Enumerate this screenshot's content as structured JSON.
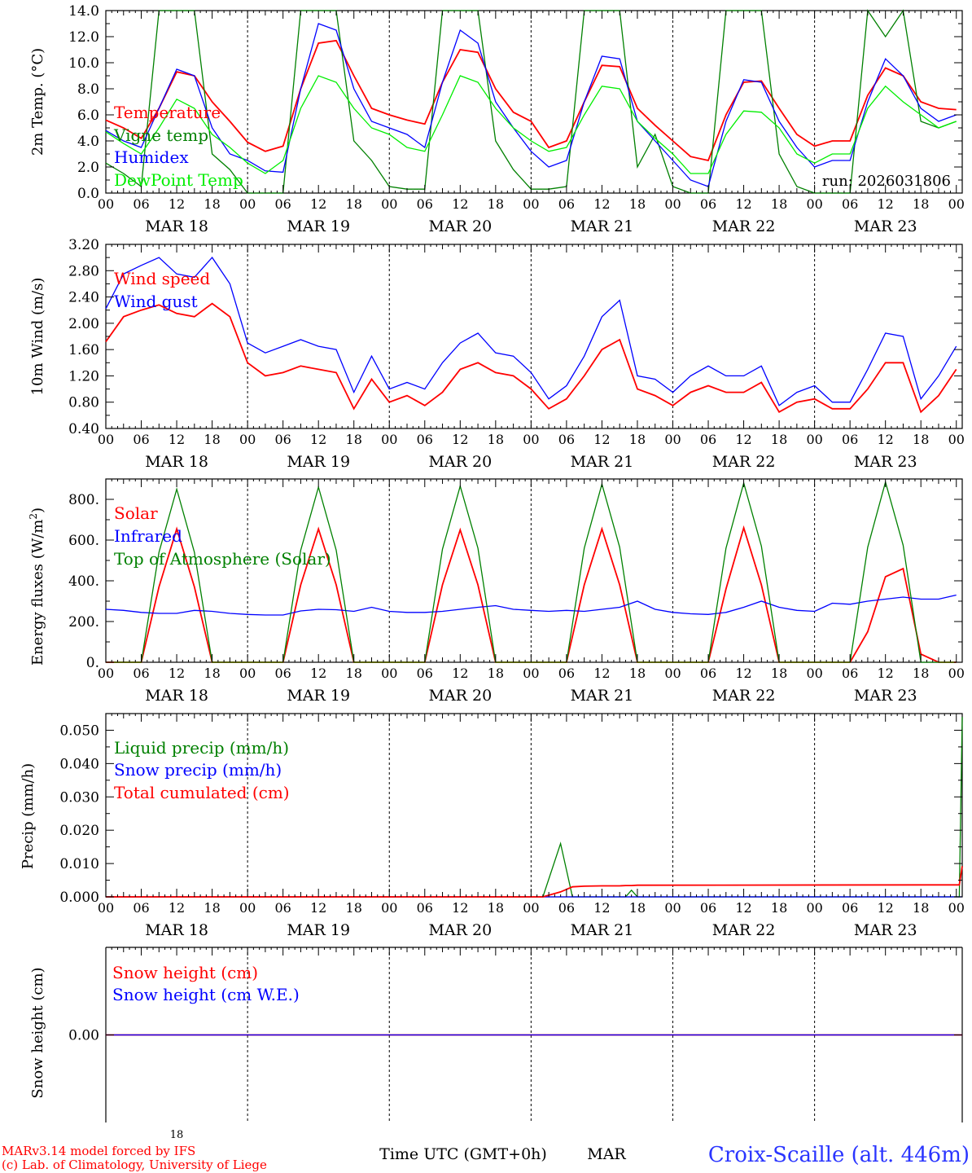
{
  "colors": {
    "red": "#ff0000",
    "green": "#008000",
    "blue": "#0000ff",
    "lightgreen": "#00ee00"
  },
  "x_axis": {
    "hour_ticks": [
      "00",
      "06",
      "12",
      "18"
    ],
    "days": [
      "MAR 18",
      "MAR 19",
      "MAR 20",
      "MAR 21",
      "MAR 22",
      "MAR 23"
    ],
    "final_tick": "00"
  },
  "footer": {
    "day_small": "18",
    "model": "MARv3.14 model forced by IFS",
    "lab": "(c) Lab. of Climatology, University of Liege",
    "time_label": "Time UTC (GMT+0h)",
    "month": "MAR",
    "station": "Croix-Scaille (alt. 446m)"
  },
  "panels": {
    "temp": {
      "ylabel": "2m Temp. (°C)",
      "run": "run: 2026031806",
      "legend": [
        "Temperature",
        "Vigne temp",
        "Humidex",
        "DewPoint Temp"
      ],
      "yticks": [
        "0.0",
        "2.0",
        "4.0",
        "6.0",
        "8.0",
        "10.0",
        "12.0",
        "14.0"
      ]
    },
    "wind": {
      "ylabel": "10m Wind (m/s)",
      "legend": [
        "Wind speed",
        "Wind gust"
      ],
      "yticks": [
        "0.40",
        "0.80",
        "1.20",
        "1.60",
        "2.00",
        "2.40",
        "2.80",
        "3.20"
      ]
    },
    "energy": {
      "ylabel_main": "Energy fluxes (W/m",
      "ylabel_sup": "2",
      "ylabel_end": ")",
      "legend": [
        "Solar",
        "Infrared",
        "Top of Atmosphere (Solar)"
      ],
      "yticks": [
        "0.",
        "200.",
        "400.",
        "600.",
        "800."
      ]
    },
    "precip": {
      "ylabel": "Precip (mm/h)",
      "legend": [
        "Liquid precip (mm/h)",
        "Snow precip (mm/h)",
        "Total cumulated (cm)"
      ],
      "yticks": [
        "0.000",
        "0.010",
        "0.020",
        "0.030",
        "0.040",
        "0.050"
      ]
    },
    "snow": {
      "ylabel": "Snow height (cm)",
      "legend": [
        "Snow height (cm)",
        "Snow height (cm W.E.)"
      ],
      "yticks": [
        "0.00"
      ]
    }
  },
  "chart_data": [
    {
      "type": "line",
      "title": "2m Temp.",
      "xlabel": "Time UTC (GMT+0h)",
      "ylabel": "2m Temp. (°C)",
      "x_hours": [
        0,
        3,
        6,
        9,
        12,
        15,
        18,
        21,
        24,
        27,
        30,
        33,
        36,
        39,
        42,
        45,
        48,
        51,
        54,
        57,
        60,
        63,
        66,
        69,
        72,
        75,
        78,
        81,
        84,
        87,
        90,
        93,
        96,
        99,
        102,
        105,
        108,
        111,
        114,
        117,
        120,
        123,
        126,
        129,
        132,
        135,
        138,
        141,
        144
      ],
      "ylim": [
        0,
        14
      ],
      "series": [
        {
          "name": "Temperature",
          "color": "red",
          "values": [
            5.6,
            5.0,
            4.2,
            6.5,
            9.3,
            9.0,
            7.0,
            5.5,
            3.9,
            3.2,
            3.6,
            8.0,
            11.5,
            11.7,
            9.0,
            6.5,
            6.0,
            5.6,
            5.3,
            8.5,
            11.0,
            10.8,
            8.0,
            6.2,
            5.5,
            3.5,
            4.0,
            7.0,
            9.8,
            9.7,
            6.5,
            5.2,
            4.0,
            2.8,
            2.5,
            6.0,
            8.5,
            8.6,
            6.5,
            4.5,
            3.6,
            4.0,
            4.0,
            7.5,
            9.6,
            9.0,
            7.0,
            6.5,
            6.4
          ]
        },
        {
          "name": "Vigne temp",
          "color": "green",
          "values": [
            2.3,
            1.5,
            0.5,
            14.0,
            14.0,
            14.0,
            3.0,
            1.8,
            0.0,
            0.0,
            0.0,
            14.0,
            14.0,
            14.0,
            4.0,
            2.5,
            0.5,
            0.3,
            0.3,
            14.0,
            14.0,
            14.0,
            4.0,
            1.8,
            0.3,
            0.3,
            0.5,
            14.0,
            14.0,
            14.0,
            2.0,
            4.5,
            0.5,
            0.0,
            0.0,
            14.0,
            14.0,
            14.0,
            3.0,
            0.5,
            0.0,
            0.0,
            0.0,
            14.0,
            12.0,
            14.0,
            5.5,
            5.0,
            5.5
          ]
        },
        {
          "name": "Humidex",
          "color": "blue",
          "values": [
            4.8,
            4.0,
            3.5,
            6.5,
            9.5,
            9.0,
            5.0,
            3.0,
            2.5,
            1.7,
            1.6,
            8.0,
            13.0,
            12.5,
            8.0,
            5.5,
            5.0,
            4.5,
            3.5,
            8.5,
            12.5,
            11.5,
            7.0,
            5.0,
            3.2,
            2.0,
            2.5,
            7.0,
            10.5,
            10.3,
            5.5,
            4.0,
            2.5,
            1.0,
            0.5,
            5.5,
            8.7,
            8.5,
            5.5,
            3.5,
            2.0,
            2.5,
            2.5,
            7.0,
            10.3,
            9.0,
            6.5,
            5.5,
            6.0
          ]
        },
        {
          "name": "DewPoint Temp",
          "color": "lightgreen",
          "values": [
            4.7,
            3.8,
            3.0,
            5.0,
            7.2,
            6.5,
            4.5,
            3.5,
            2.3,
            1.5,
            2.5,
            6.5,
            9.0,
            8.5,
            6.5,
            5.0,
            4.5,
            3.5,
            3.2,
            6.0,
            9.0,
            8.5,
            6.5,
            5.0,
            4.0,
            3.2,
            3.5,
            6.0,
            8.2,
            8.0,
            5.5,
            4.2,
            3.0,
            1.5,
            1.5,
            4.5,
            6.3,
            6.2,
            5.0,
            3.0,
            2.3,
            3.0,
            3.0,
            6.5,
            8.2,
            7.0,
            6.0,
            5.0,
            5.5
          ]
        }
      ]
    },
    {
      "type": "line",
      "title": "10m Wind",
      "xlabel": "Time UTC (GMT+0h)",
      "ylabel": "10m Wind (m/s)",
      "x_hours": [
        0,
        3,
        6,
        9,
        12,
        15,
        18,
        21,
        24,
        27,
        30,
        33,
        36,
        39,
        42,
        45,
        48,
        51,
        54,
        57,
        60,
        63,
        66,
        69,
        72,
        75,
        78,
        81,
        84,
        87,
        90,
        93,
        96,
        99,
        102,
        105,
        108,
        111,
        114,
        117,
        120,
        123,
        126,
        129,
        132,
        135,
        138,
        141,
        144
      ],
      "ylim": [
        0.4,
        3.2
      ],
      "series": [
        {
          "name": "Wind speed",
          "color": "red",
          "values": [
            1.72,
            2.1,
            2.2,
            2.28,
            2.15,
            2.1,
            2.3,
            2.1,
            1.4,
            1.2,
            1.25,
            1.35,
            1.3,
            1.25,
            0.7,
            1.15,
            0.8,
            0.9,
            0.75,
            0.95,
            1.3,
            1.4,
            1.25,
            1.2,
            1.0,
            0.7,
            0.85,
            1.2,
            1.6,
            1.75,
            1.0,
            0.9,
            0.75,
            0.95,
            1.05,
            0.95,
            0.95,
            1.1,
            0.65,
            0.8,
            0.85,
            0.7,
            0.7,
            1.0,
            1.4,
            1.4,
            0.65,
            0.9,
            1.3
          ]
        },
        {
          "name": "Wind gust",
          "color": "blue",
          "values": [
            2.22,
            2.75,
            2.88,
            3.0,
            2.75,
            2.7,
            3.0,
            2.6,
            1.7,
            1.55,
            1.65,
            1.75,
            1.65,
            1.6,
            0.95,
            1.5,
            1.0,
            1.1,
            1.0,
            1.4,
            1.7,
            1.85,
            1.55,
            1.5,
            1.25,
            0.85,
            1.05,
            1.5,
            2.1,
            2.35,
            1.2,
            1.15,
            0.95,
            1.2,
            1.35,
            1.2,
            1.2,
            1.35,
            0.75,
            0.95,
            1.05,
            0.8,
            0.8,
            1.3,
            1.85,
            1.8,
            0.85,
            1.2,
            1.65
          ]
        }
      ]
    },
    {
      "type": "line",
      "title": "Energy fluxes",
      "xlabel": "Time UTC (GMT+0h)",
      "ylabel": "Energy fluxes (W/m2)",
      "x_hours": [
        0,
        3,
        6,
        9,
        12,
        15,
        18,
        21,
        24,
        27,
        30,
        33,
        36,
        39,
        42,
        45,
        48,
        51,
        54,
        57,
        60,
        63,
        66,
        69,
        72,
        75,
        78,
        81,
        84,
        87,
        90,
        93,
        96,
        99,
        102,
        105,
        108,
        111,
        114,
        117,
        120,
        123,
        126,
        129,
        132,
        135,
        138,
        141,
        144
      ],
      "ylim": [
        0,
        900
      ],
      "series": [
        {
          "name": "Solar",
          "color": "red",
          "values": [
            0,
            0,
            0,
            370,
            655,
            370,
            0,
            0,
            0,
            0,
            0,
            380,
            655,
            380,
            0,
            0,
            0,
            0,
            0,
            380,
            650,
            380,
            0,
            0,
            0,
            0,
            0,
            380,
            655,
            380,
            0,
            0,
            0,
            0,
            0,
            360,
            660,
            380,
            0,
            0,
            0,
            0,
            0,
            150,
            420,
            460,
            40,
            0,
            0
          ]
        },
        {
          "name": "Infrared",
          "color": "blue",
          "values": [
            260,
            255,
            245,
            240,
            240,
            255,
            250,
            240,
            235,
            232,
            232,
            252,
            260,
            258,
            250,
            270,
            250,
            245,
            245,
            250,
            260,
            270,
            278,
            260,
            255,
            250,
            255,
            250,
            260,
            270,
            300,
            260,
            245,
            238,
            235,
            245,
            270,
            300,
            270,
            255,
            250,
            290,
            285,
            300,
            310,
            320,
            310,
            310,
            330
          ]
        },
        {
          "name": "Top of Atmosphere (Solar)",
          "color": "green",
          "values": [
            0,
            0,
            0,
            540,
            850,
            540,
            0,
            0,
            0,
            0,
            0,
            550,
            860,
            550,
            0,
            0,
            0,
            0,
            0,
            555,
            865,
            560,
            0,
            0,
            0,
            0,
            0,
            560,
            875,
            565,
            0,
            0,
            0,
            0,
            0,
            560,
            880,
            570,
            0,
            0,
            0,
            0,
            0,
            565,
            885,
            575,
            0,
            0,
            0
          ]
        }
      ]
    },
    {
      "type": "line",
      "title": "Precip",
      "xlabel": "Time UTC (GMT+0h)",
      "ylabel": "Precip (mm/h)",
      "x_hours": [
        0,
        72,
        74,
        77,
        79,
        81,
        84,
        87,
        88,
        89,
        90,
        144,
        144.5,
        145
      ],
      "ylim": [
        0,
        0.055
      ],
      "series": [
        {
          "name": "Liquid precip (mm/h)",
          "color": "green",
          "values": [
            0,
            0,
            0.0,
            0.016,
            0.0,
            0.0,
            0.0,
            0.0,
            0.0,
            0.002,
            0.0,
            0.0,
            0.0,
            0.054
          ]
        },
        {
          "name": "Snow precip (mm/h)",
          "color": "blue",
          "values": [
            0,
            0,
            0,
            0,
            0,
            0,
            0,
            0,
            0,
            0,
            0,
            0,
            0,
            0
          ]
        },
        {
          "name": "Total cumulated (cm)",
          "color": "red",
          "values": [
            0,
            0,
            0,
            0.0015,
            0.003,
            0.0032,
            0.0033,
            0.0033,
            0.0034,
            0.0034,
            0.0035,
            0.0036,
            0.0036,
            0.0092
          ]
        }
      ]
    },
    {
      "type": "line",
      "title": "Snow height",
      "xlabel": "Time UTC (GMT+0h)",
      "ylabel": "Snow height (cm)",
      "x_hours": [
        0,
        145
      ],
      "ylim": [
        -1,
        1
      ],
      "series": [
        {
          "name": "Snow height (cm)",
          "color": "red",
          "values": [
            0,
            0
          ]
        },
        {
          "name": "Snow height (cm W.E.)",
          "color": "blue",
          "values": [
            0,
            0
          ]
        }
      ]
    }
  ]
}
